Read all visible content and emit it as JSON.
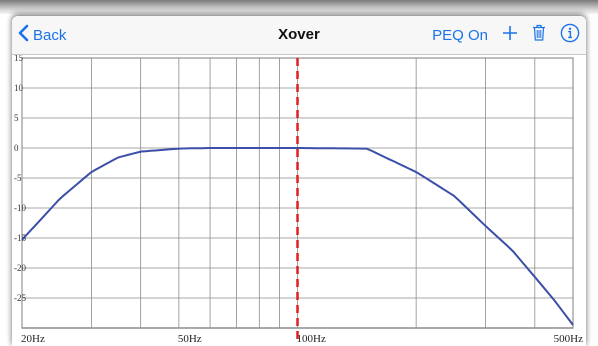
{
  "header": {
    "back_label": "Back",
    "title": "Xover",
    "peq_label": "PEQ On"
  },
  "icons": {
    "back": "chevron-left-icon",
    "add": "plus-icon",
    "delete": "trash-icon",
    "info": "info-icon"
  },
  "colors": {
    "accent": "#1a73e8",
    "curve": "#3b4fa8",
    "marker": "#e02020"
  },
  "chart_data": {
    "type": "line",
    "x_scale": "log",
    "xlim": [
      20,
      500
    ],
    "ylim": [
      -30,
      15
    ],
    "y_ticks": [
      "15",
      "10",
      "5",
      "0",
      "-5",
      "-10",
      "-15",
      "-20",
      "-25"
    ],
    "x_tick_labels": [
      "20Hz",
      "50Hz",
      "100Hz",
      "500Hz"
    ],
    "x_ticks": [
      20,
      50,
      100,
      500
    ],
    "grid": true,
    "marker_frequency": 100,
    "series": [
      {
        "x": [
          20,
          25,
          30,
          35,
          40,
          50,
          60,
          80,
          100,
          150,
          200,
          250,
          300,
          350,
          400,
          450,
          500
        ],
        "y": [
          -15.3,
          -8.4,
          -4.0,
          -1.6,
          -0.6,
          -0.1,
          0.0,
          0.0,
          0.0,
          -0.1,
          -4.0,
          -8.0,
          -13.0,
          -17.0,
          -21.5,
          -25.5,
          -29.5
        ]
      }
    ]
  }
}
